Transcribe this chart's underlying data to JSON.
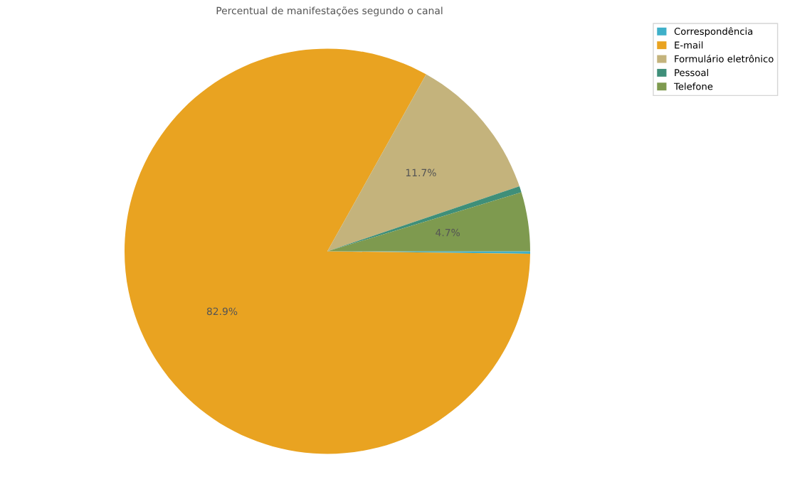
{
  "chart_data": {
    "type": "pie",
    "title": "Percentual de manifestações segundo o canal",
    "categories": [
      "Correspondência",
      "E-mail",
      "Formulário eletrônico",
      "Pessoal",
      "Telefone"
    ],
    "values": [
      0.2,
      82.9,
      11.7,
      0.5,
      4.7
    ],
    "colors": [
      "#3fb0c9",
      "#e9a321",
      "#c4b37c",
      "#3f8f79",
      "#7e9a4f"
    ],
    "value_labels": [
      null,
      "82.9%",
      "11.7%",
      null,
      "4.7%"
    ],
    "legend": "top right"
  }
}
